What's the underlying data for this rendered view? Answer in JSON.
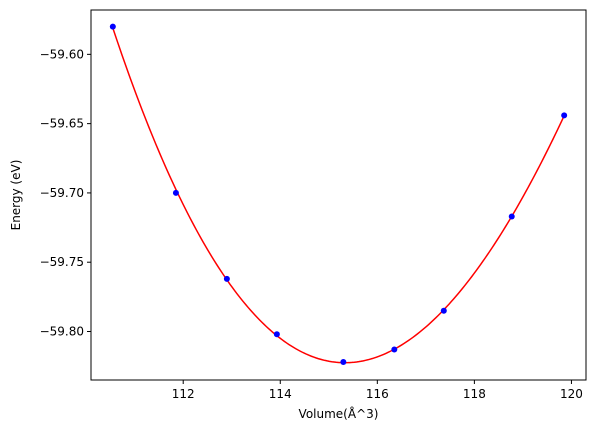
{
  "chart_data": {
    "type": "scatter",
    "xlabel": "Volume(Å^3)",
    "ylabel": "Energy (eV)",
    "xlim": [
      110.1,
      120.3
    ],
    "ylim": [
      -59.835,
      -59.568
    ],
    "xticks": [
      112,
      114,
      116,
      118,
      120
    ],
    "yticks": [
      -59.6,
      -59.65,
      -59.7,
      -59.75,
      -59.8
    ],
    "xtick_labels": [
      "112",
      "114",
      "116",
      "118",
      "120"
    ],
    "ytick_labels": [
      "−59.60",
      "−59.65",
      "−59.70",
      "−59.75",
      "−59.80"
    ],
    "grid": false,
    "colors": {
      "points": "#0000ff",
      "fit": "#ff0000",
      "axes": "#000000"
    },
    "series": [
      {
        "kind": "scatter",
        "x": [
          110.55,
          111.85,
          112.9,
          113.93,
          115.3,
          116.35,
          117.37,
          118.77,
          119.85
        ],
        "y": [
          -59.58,
          -59.7,
          -59.762,
          -59.802,
          -59.822,
          -59.813,
          -59.785,
          -59.717,
          -59.644
        ]
      },
      {
        "kind": "line",
        "fit": "cubic",
        "x_range": [
          110.55,
          119.85
        ],
        "coefficients": [
          -59.8216,
          0.0002,
          0.009,
          -0.0002
        ],
        "x_center": 115.6
      }
    ]
  }
}
